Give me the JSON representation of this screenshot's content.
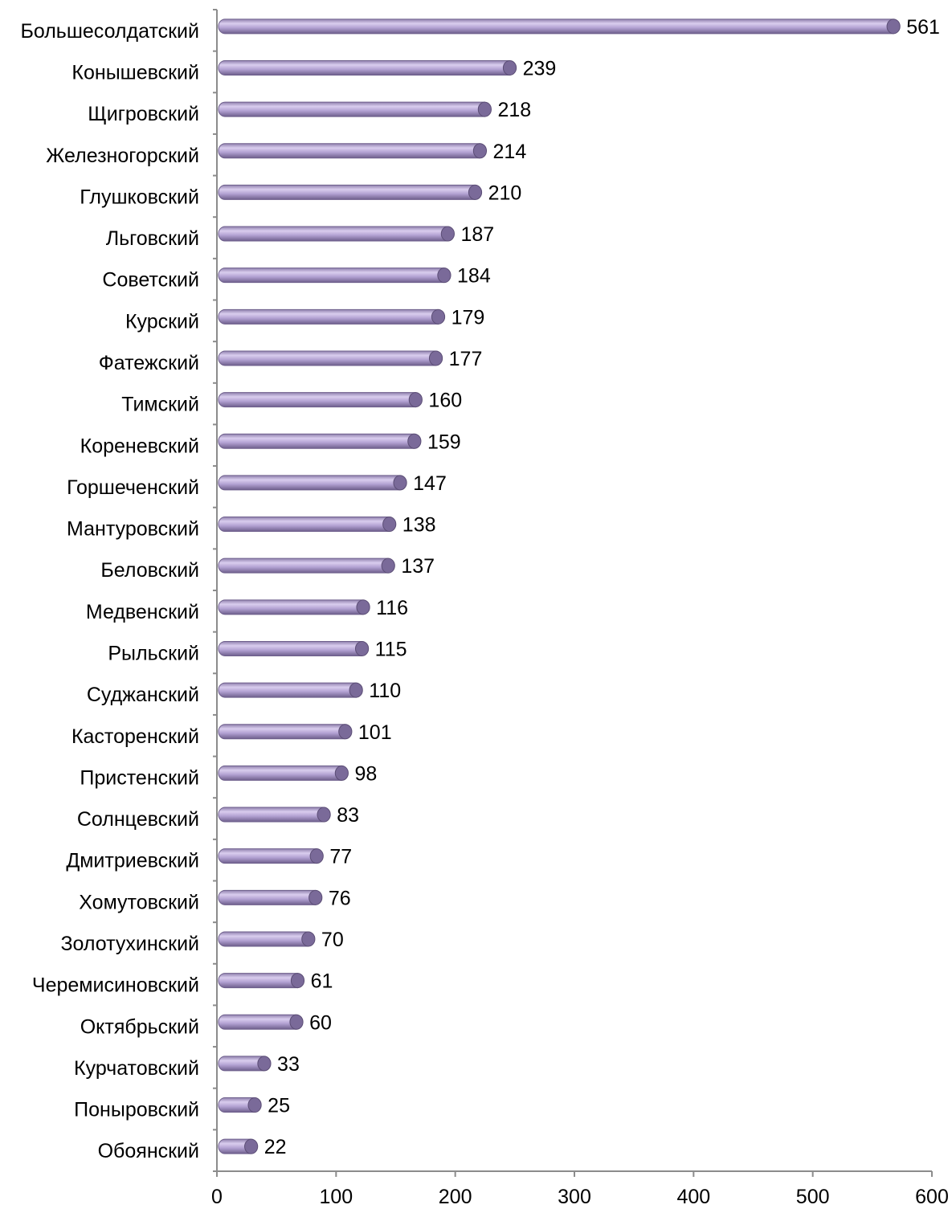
{
  "chart_data": {
    "type": "bar",
    "orientation": "horizontal",
    "title": "",
    "xlabel": "",
    "ylabel": "",
    "xlim": [
      0,
      600
    ],
    "x_ticks": [
      "0",
      "100",
      "200",
      "300",
      "400",
      "500",
      "600"
    ],
    "grid": false,
    "legend": "none",
    "bar_color": "#b3a2d3",
    "bar_dark": "#7a6a99",
    "axis_color": "#8c8c8c",
    "categories": [
      "Большесолдатский",
      "Конышевский",
      "Щигровский",
      "Железногорский",
      "Глушковский",
      "Льговский",
      "Советский",
      "Курский",
      "Фатежский",
      "Тимский",
      "Кореневский",
      "Горшеченский",
      "Мантуровский",
      "Беловский",
      "Медвенский",
      "Рыльский",
      "Суджанский",
      "Касторенский",
      "Пристенский",
      "Солнцевский",
      "Дмитриевский",
      "Хомутовский",
      "Золотухинский",
      "Черемисиновский",
      "Октябрьский",
      "Курчатовский",
      "Поныровский",
      "Обоянский"
    ],
    "values": [
      561,
      239,
      218,
      214,
      210,
      187,
      184,
      179,
      177,
      160,
      159,
      147,
      138,
      137,
      116,
      115,
      110,
      101,
      98,
      83,
      77,
      76,
      70,
      61,
      60,
      33,
      25,
      22
    ],
    "value_labels": [
      "561",
      "239",
      "218",
      "214",
      "210",
      "187",
      "184",
      "179",
      "177",
      "160",
      "159",
      "147",
      "138",
      "137",
      "116",
      "115",
      "110",
      "101",
      "98",
      "83",
      "77",
      "76",
      "70",
      "61",
      "60",
      "33",
      "25",
      "22"
    ]
  }
}
